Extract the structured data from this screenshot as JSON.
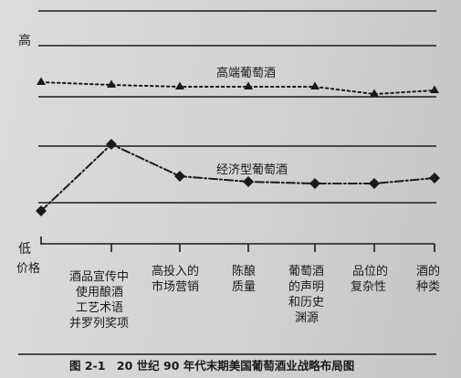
{
  "diagram": {
    "y_axis": {
      "high_label": "高",
      "low_label": "低"
    },
    "series": [
      {
        "name": "高端葡萄酒",
        "style": "dotted",
        "marker": "triangle"
      },
      {
        "name": "经济型葡萄酒",
        "style": "dash-dot",
        "marker": "diamond"
      }
    ],
    "categories": [
      {
        "label": [
          "价格"
        ]
      },
      {
        "label": [
          "酒品宣传中",
          "使用酿酒",
          "工艺术语",
          "并罗列奖项"
        ]
      },
      {
        "label": [
          "高投入的",
          "市场营销"
        ]
      },
      {
        "label": [
          "陈酿",
          "质量"
        ]
      },
      {
        "label": [
          "葡萄酒",
          "的声明",
          "和历史",
          "渊源"
        ]
      },
      {
        "label": [
          "品位的",
          "复杂性"
        ]
      },
      {
        "label": [
          "酒的",
          "种类"
        ]
      }
    ],
    "caption": "图 2-1　20 世纪 90 年代末期美国葡萄酒业战略布局图"
  },
  "colors": {
    "ink": "#1a1a1a",
    "paper": "#d6d6d4"
  }
}
